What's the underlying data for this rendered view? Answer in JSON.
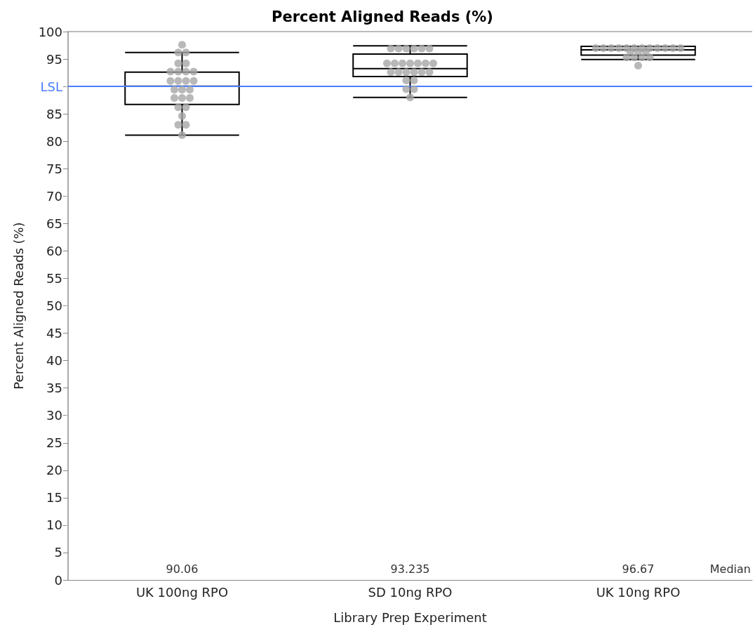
{
  "chart_data": {
    "type": "box",
    "title": "Percent Aligned Reads (%)",
    "xlabel": "Library Prep Experiment",
    "ylabel": "Percent Aligned Reads (%)",
    "categories": [
      "UK 100ng RPO",
      "SD 10ng RPO",
      "UK 10ng RPO"
    ],
    "boxes": [
      {
        "low": 81.1,
        "q1": 86.7,
        "median": 90.06,
        "q3": 92.6,
        "high": 96.2
      },
      {
        "low": 88.0,
        "q1": 91.8,
        "median": 93.235,
        "q3": 95.9,
        "high": 97.4
      },
      {
        "low": 94.9,
        "q1": 95.7,
        "median": 96.67,
        "q3": 97.3,
        "high": 97.3,
        "outliers": [
          93.8
        ]
      }
    ],
    "series": [
      {
        "type": "scatter",
        "color": "#a6a6a6",
        "x": [
          "UK 100ng RPO",
          "UK 100ng RPO",
          "UK 100ng RPO",
          "UK 100ng RPO",
          "UK 100ng RPO",
          "UK 100ng RPO",
          "UK 100ng RPO",
          "UK 100ng RPO",
          "UK 100ng RPO",
          "UK 100ng RPO",
          "UK 100ng RPO",
          "UK 100ng RPO",
          "UK 100ng RPO",
          "UK 100ng RPO",
          "UK 100ng RPO",
          "UK 100ng RPO",
          "UK 100ng RPO",
          "UK 100ng RPO",
          "UK 100ng RPO",
          "UK 100ng RPO",
          "UK 100ng RPO",
          "UK 100ng RPO",
          "UK 100ng RPO",
          "UK 100ng RPO",
          "UK 100ng RPO",
          "SD 10ng RPO",
          "SD 10ng RPO",
          "SD 10ng RPO",
          "SD 10ng RPO",
          "SD 10ng RPO",
          "SD 10ng RPO",
          "SD 10ng RPO",
          "SD 10ng RPO",
          "SD 10ng RPO",
          "SD 10ng RPO",
          "SD 10ng RPO",
          "SD 10ng RPO",
          "SD 10ng RPO",
          "SD 10ng RPO",
          "SD 10ng RPO",
          "SD 10ng RPO",
          "SD 10ng RPO",
          "SD 10ng RPO",
          "SD 10ng RPO",
          "SD 10ng RPO",
          "SD 10ng RPO",
          "SD 10ng RPO",
          "SD 10ng RPO",
          "SD 10ng RPO",
          "UK 10ng RPO",
          "UK 10ng RPO",
          "UK 10ng RPO",
          "UK 10ng RPO",
          "UK 10ng RPO",
          "UK 10ng RPO",
          "UK 10ng RPO",
          "UK 10ng RPO",
          "UK 10ng RPO",
          "UK 10ng RPO",
          "UK 10ng RPO",
          "UK 10ng RPO",
          "UK 10ng RPO",
          "UK 10ng RPO",
          "UK 10ng RPO",
          "UK 10ng RPO",
          "UK 10ng RPO",
          "UK 10ng RPO",
          "UK 10ng RPO"
        ],
        "values": [
          97.6,
          96.2,
          96.2,
          94.2,
          94.2,
          92.7,
          92.7,
          92.7,
          92.7,
          91.0,
          91.0,
          91.0,
          91.0,
          89.4,
          89.4,
          89.4,
          87.9,
          87.9,
          87.9,
          86.2,
          86.2,
          84.6,
          83.0,
          83.0,
          81.1,
          96.9,
          96.9,
          96.9,
          96.9,
          96.9,
          96.9,
          94.2,
          94.2,
          94.2,
          94.2,
          94.2,
          94.2,
          94.2,
          92.6,
          92.6,
          92.6,
          92.6,
          92.6,
          92.6,
          91.1,
          91.1,
          89.5,
          89.5,
          88.0,
          97.0,
          97.0,
          97.0,
          97.0,
          97.0,
          97.0,
          97.0,
          97.0,
          97.0,
          97.0,
          97.0,
          97.0,
          96.4,
          96.4,
          96.4,
          95.3,
          95.3,
          95.3,
          95.3
        ]
      }
    ],
    "ylim": [
      0,
      100
    ],
    "yticks": [
      0,
      5,
      10,
      15,
      20,
      25,
      30,
      35,
      40,
      45,
      50,
      55,
      60,
      65,
      70,
      75,
      80,
      85,
      {
        "value": 90,
        "label": "LSL"
      },
      95,
      100
    ],
    "ref_lines": [
      {
        "axis": "y",
        "value": 90,
        "color": "#4a7dff"
      }
    ],
    "annotations": [
      "90.06",
      "93.235",
      "96.67",
      "Median"
    ],
    "grid": false
  }
}
